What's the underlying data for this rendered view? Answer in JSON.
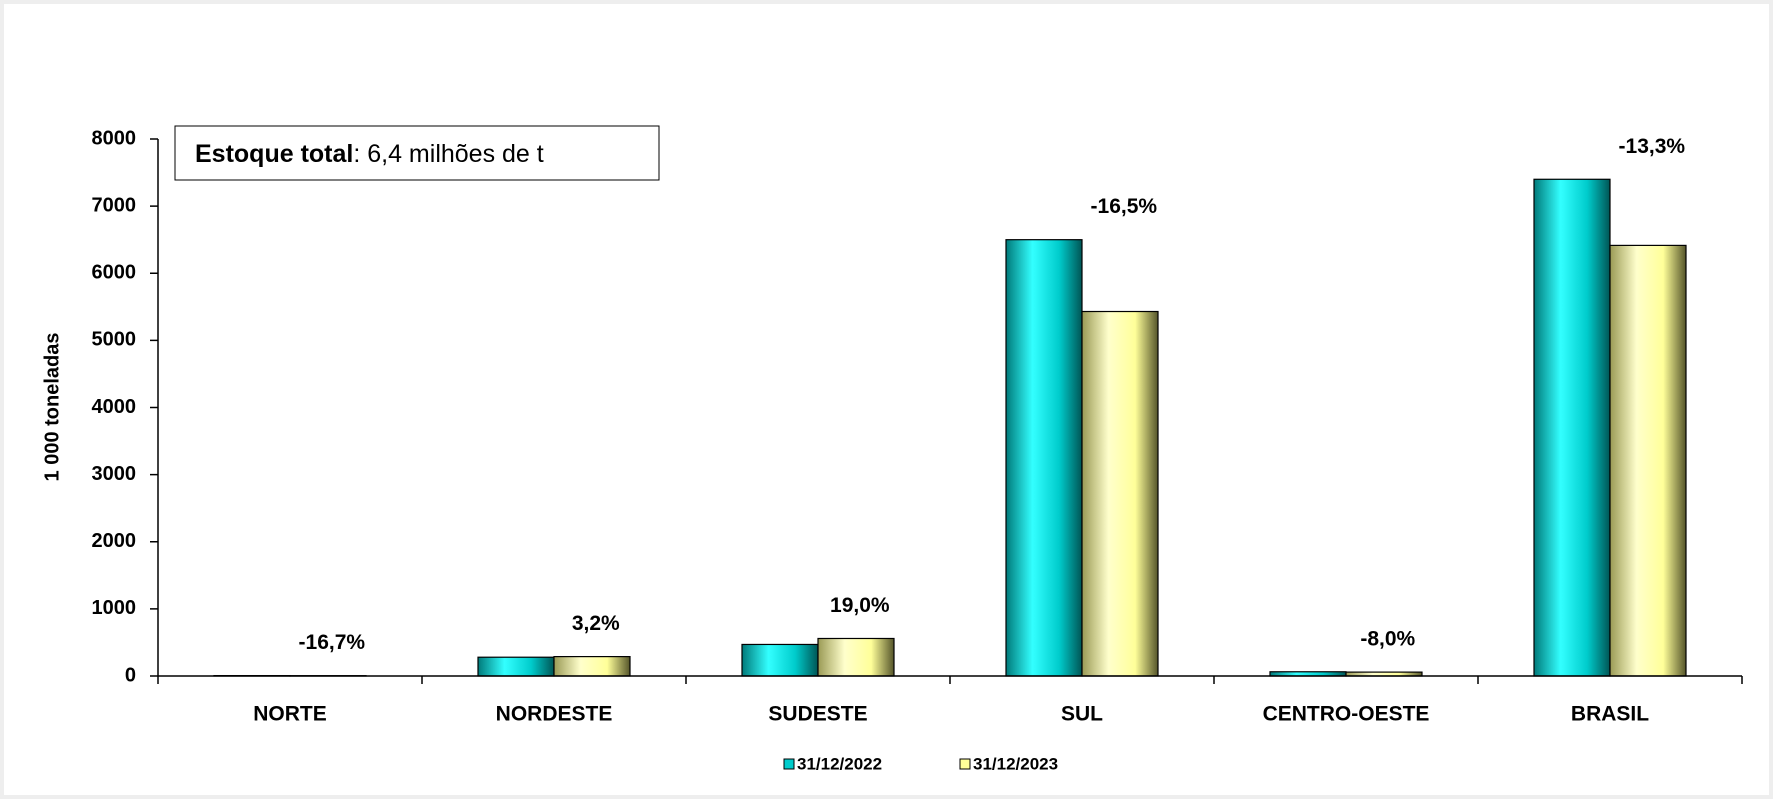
{
  "chart_data": {
    "type": "bar",
    "y_label": "1 000 toneladas",
    "annotation_bold": "Estoque total",
    "annotation_text": ": 6,4 milhões de t",
    "categories": [
      "NORTE",
      "NORDESTE",
      "SUDESTE",
      "SUL",
      "CENTRO-OESTE",
      "BRASIL"
    ],
    "series": [
      {
        "name": "31/12/2022",
        "color": "#00cccc",
        "values": [
          6,
          280,
          470,
          6500,
          63,
          7400
        ]
      },
      {
        "name": "31/12/2023",
        "color": "#ffff99",
        "values": [
          5,
          289,
          559,
          5430,
          58,
          6415
        ]
      }
    ],
    "change_labels": [
      "-16,7%",
      "3,2%",
      "19,0%",
      "-16,5%",
      "-8,0%",
      "-13,3%"
    ],
    "ylim": [
      0,
      8000
    ],
    "yticks": [
      0,
      1000,
      2000,
      3000,
      4000,
      5000,
      6000,
      7000,
      8000
    ],
    "legend": "bottom"
  }
}
